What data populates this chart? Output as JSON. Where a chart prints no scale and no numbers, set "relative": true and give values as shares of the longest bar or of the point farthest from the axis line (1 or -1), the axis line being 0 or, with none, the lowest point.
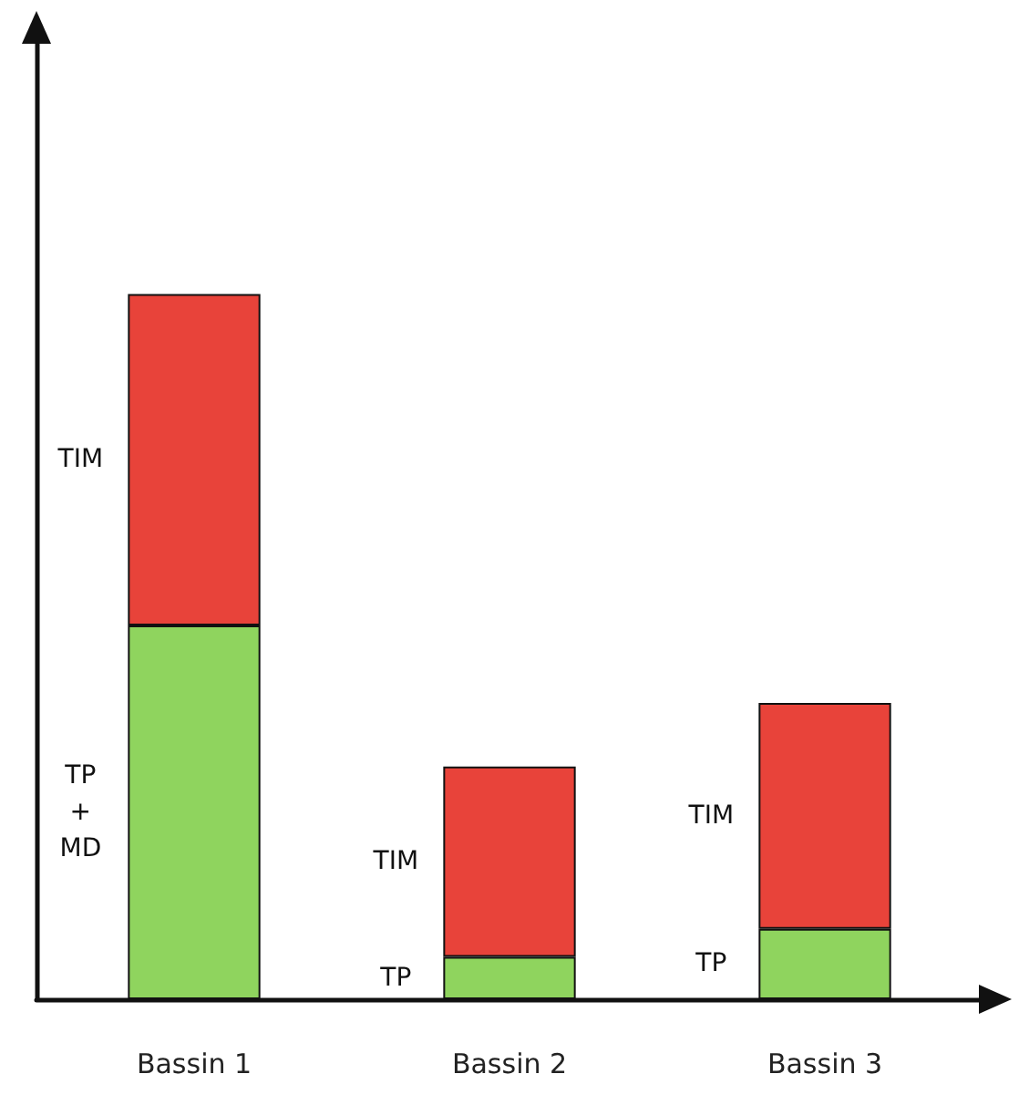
{
  "chart_data": {
    "type": "bar",
    "stacked": true,
    "relative": true,
    "categories": [
      "Bassin 1",
      "Bassin 2",
      "Bassin 3"
    ],
    "series": [
      {
        "color": "#8fd45e",
        "values": [
          0.53,
          0.06,
          0.1
        ]
      },
      {
        "color": "#e8433a",
        "values": [
          0.47,
          0.27,
          0.32
        ]
      }
    ],
    "annotations": [
      "TP + MD",
      "TIM",
      "TP",
      "TIM",
      "TP",
      "TIM"
    ],
    "grid": false
  }
}
